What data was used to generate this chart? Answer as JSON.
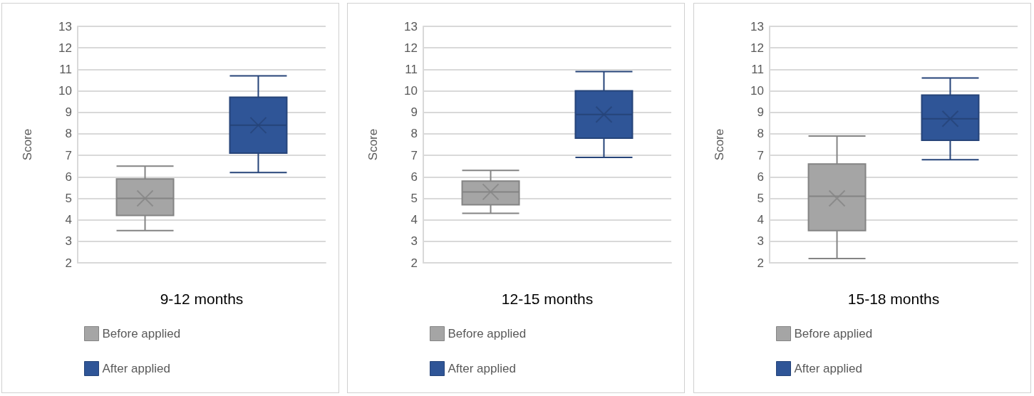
{
  "chart_data": [
    {
      "type": "box",
      "xlabel": "9-12 months",
      "ylabel": "Score",
      "categories": [
        null
      ],
      "ylim": [
        2,
        13
      ],
      "yticks": [
        2,
        3,
        4,
        5,
        6,
        7,
        8,
        9,
        10,
        11,
        12,
        13
      ],
      "grid": "y",
      "legend": "bottom",
      "series": [
        {
          "name": "Before applied",
          "color": "#a5a5a5",
          "boxes": [
            {
              "low": 3.5,
              "q1": 4.2,
              "median": 5.0,
              "q3": 5.9,
              "high": 6.5,
              "mean": 5.0
            }
          ]
        },
        {
          "name": "After applied",
          "color": "#2f5597",
          "boxes": [
            {
              "low": 6.2,
              "q1": 7.1,
              "median": 8.4,
              "q3": 9.7,
              "high": 10.7,
              "mean": 8.4
            }
          ]
        }
      ]
    },
    {
      "type": "box",
      "xlabel": "12-15 months",
      "ylabel": "Score",
      "categories": [
        null
      ],
      "ylim": [
        2,
        13
      ],
      "yticks": [
        2,
        3,
        4,
        5,
        6,
        7,
        8,
        9,
        10,
        11,
        12,
        13
      ],
      "grid": "y",
      "legend": "bottom",
      "series": [
        {
          "name": "Before applied",
          "color": "#a5a5a5",
          "boxes": [
            {
              "low": 4.3,
              "q1": 4.7,
              "median": 5.3,
              "q3": 5.8,
              "high": 6.3,
              "mean": 5.3
            }
          ]
        },
        {
          "name": "After applied",
          "color": "#2f5597",
          "boxes": [
            {
              "low": 6.9,
              "q1": 7.8,
              "median": 8.9,
              "q3": 10.0,
              "high": 10.9,
              "mean": 8.9
            }
          ]
        }
      ]
    },
    {
      "type": "box",
      "xlabel": "15-18 months",
      "ylabel": "Score",
      "categories": [
        null
      ],
      "ylim": [
        2,
        13
      ],
      "yticks": [
        2,
        3,
        4,
        5,
        6,
        7,
        8,
        9,
        10,
        11,
        12,
        13
      ],
      "grid": "y",
      "legend": "bottom",
      "series": [
        {
          "name": "Before applied",
          "color": "#a5a5a5",
          "boxes": [
            {
              "low": 2.2,
              "q1": 3.5,
              "median": 5.1,
              "q3": 6.6,
              "high": 7.9,
              "mean": 5.0
            }
          ]
        },
        {
          "name": "After applied",
          "color": "#2f5597",
          "boxes": [
            {
              "low": 6.8,
              "q1": 7.7,
              "median": 8.7,
              "q3": 9.8,
              "high": 10.6,
              "mean": 8.7
            }
          ]
        }
      ]
    }
  ]
}
